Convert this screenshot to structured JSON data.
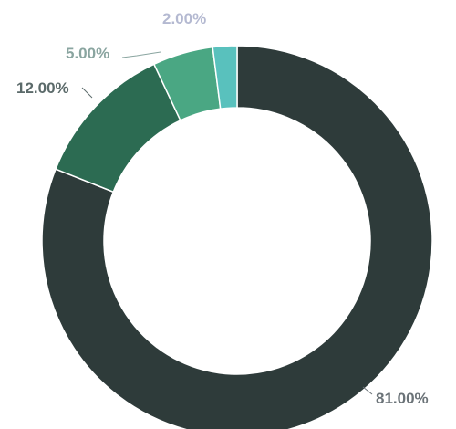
{
  "chart_data": {
    "type": "pie",
    "variant": "donut",
    "title": "",
    "slices": [
      {
        "value": 81,
        "label": "81.00%",
        "color": "#2e3b3a"
      },
      {
        "value": 12,
        "label": "12.00%",
        "color": "#2c6b52"
      },
      {
        "value": 5,
        "label": "5.00%",
        "color": "#4aa783"
      },
      {
        "value": 2,
        "label": "2.00%",
        "color": "#59c1bd"
      }
    ],
    "label_colors": [
      "#6b7378",
      "#5b6a6a",
      "#8aa5a0",
      "#b4b9d1"
    ],
    "start_angle": "top (12 o'clock)",
    "direction": "clockwise",
    "legend": "none"
  }
}
